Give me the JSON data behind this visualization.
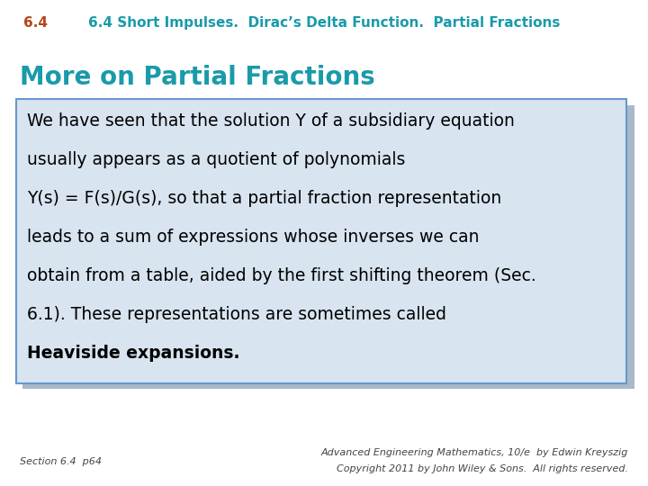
{
  "title_num": "6.4",
  "title_rest": " Short Impulses.  Dirac’s Delta Function.  Partial Fractions",
  "title_color_num": "#b5451b",
  "title_color_rest": "#1a9aaa",
  "section_heading": "More on Partial Fractions",
  "section_heading_color": "#1a9aaa",
  "box_bg_color": "#d8e4f0",
  "box_border_color": "#6699cc",
  "box_shadow_color": "#aab8c8",
  "body_lines": [
    "We have seen that the solution Υ of a subsidiary equation",
    "usually appears as a quotient of polynomials",
    "Υ(s) = F(s)/G(s), so that a partial fraction representation",
    "leads to a sum of expressions whose inverses we can",
    "obtain from a table, aided by the first shifting theorem (Sec.",
    "6.1). These representations are sometimes called",
    "Heaviside expansions."
  ],
  "bold_phrase": "Heaviside expansions.",
  "body_color": "#000000",
  "footer_left": "Section 6.4  p64",
  "footer_right_line1": "Advanced Engineering Mathematics, 10/e  by Edwin Kreyszig",
  "footer_right_line2": "Copyright 2011 by John Wiley & Sons.  All rights reserved.",
  "footer_color": "#444444",
  "bg_color": "#ffffff"
}
